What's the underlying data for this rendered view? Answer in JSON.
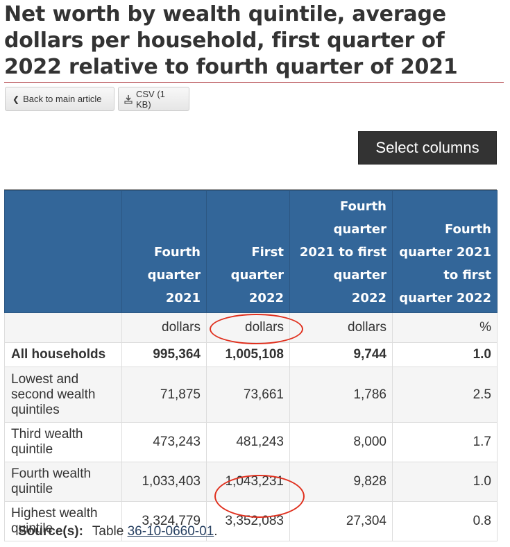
{
  "page": {
    "title": "Net worth by wealth quintile, average dollars per household, first quarter of 2022 relative to fourth quarter of 2021"
  },
  "toolbar": {
    "back_label": "Back to main article",
    "csv_label": "CSV (1 KB)",
    "select_columns_label": "Select columns"
  },
  "table": {
    "headers": [
      "",
      "Fourth quarter 2021",
      "First quarter 2022",
      "Fourth quarter 2021 to first quarter 2022",
      "Fourth quarter 2021 to first quarter 2022"
    ],
    "units": [
      "",
      "dollars",
      "dollars",
      "dollars",
      "%"
    ],
    "rows": [
      {
        "label": "All households",
        "values": [
          "995,364",
          "1,005,108",
          "9,744",
          "1.0"
        ]
      },
      {
        "label": "Lowest and second wealth quintiles",
        "values": [
          "71,875",
          "73,661",
          "1,786",
          "2.5"
        ]
      },
      {
        "label": "Third wealth quintile",
        "values": [
          "473,243",
          "481,243",
          "8,000",
          "1.7"
        ]
      },
      {
        "label": "Fourth wealth quintile",
        "values": [
          "1,033,403",
          "1,043,231",
          "9,828",
          "1.0"
        ]
      },
      {
        "label": "Highest wealth quintile",
        "values": [
          "3,324,779",
          "3,352,083",
          "27,304",
          "0.8"
        ]
      }
    ]
  },
  "source": {
    "label": "Source(s):",
    "prefix": "Table",
    "link_text": "36-10-0660-01",
    "suffix": "."
  },
  "colors": {
    "header_bg": "#336699",
    "accent_rule": "#af3c43",
    "annotation": "#e0301e"
  }
}
